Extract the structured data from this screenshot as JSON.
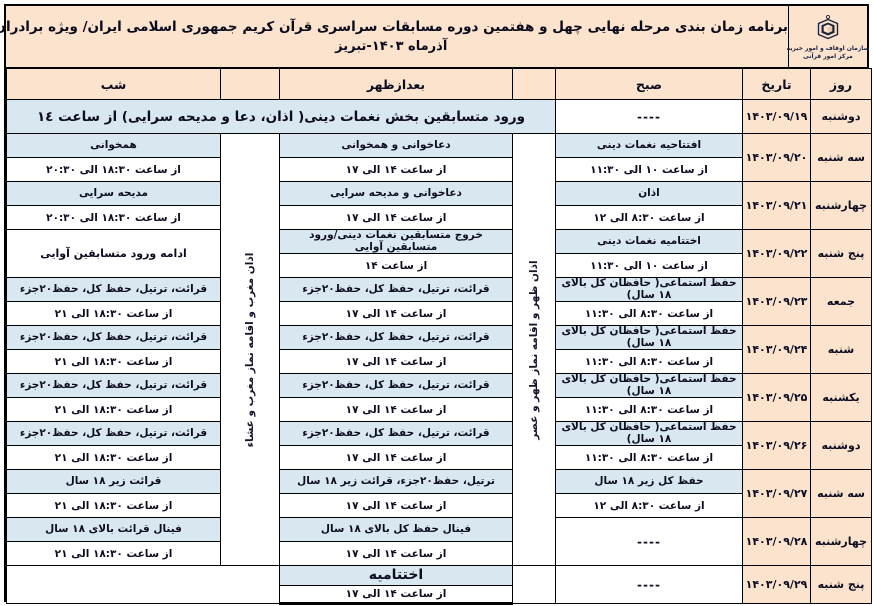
{
  "header": {
    "title_line1": "برنامه زمان بندی مرحله نهایی چهل و هفتمین دوره مسابقات سراسری قرآن کریم جمهوری اسلامی ایران/ ویژه برادران",
    "title_line2": "آذرماه ۱۴۰۳-تبریز",
    "left_logo": "quran-calligraphy-roundel",
    "right_logo": {
      "emblem": "awqaf-organization-emblem",
      "caption_line1": "سازمان اوقاف و امور خیریه",
      "caption_line2": "مرکز امور قرآنی"
    }
  },
  "table": {
    "columns": {
      "day": "روز",
      "date": "تاریخ",
      "morning": "صبح",
      "afternoon": "بعدازظهر",
      "night": "شب"
    },
    "vertical_labels": {
      "noon": "اذان ظهر و اقامه نماز ظهر و عصر",
      "evening": "اذان مغرب و اقامه نماز مغرب و عشاء"
    },
    "rows": [
      {
        "day": "دوشنبه",
        "date": "۱۴۰۳/۰۹/۱۹",
        "morning": {
          "dash": "----"
        },
        "wide": "ورود متسابقین بخش نغمات دینی( اذان، دعا و مدیحه سرایی) از ساعت ١٤"
      },
      {
        "day": "سه شنبه",
        "date": "۱۴۰۳/۰۹/۲۰",
        "morning": {
          "label": "افتتاحیه نغمات دینی",
          "time": "از ساعت ۱۰ الی ۱۱:۳۰"
        },
        "afternoon": {
          "label": "دعاخوانی و همخوانی",
          "time": "از ساعت ۱۴ الی ۱۷"
        },
        "night": {
          "label": "همخوانی",
          "time": "از ساعت ۱۸:۳۰ الی ۲۰:۳۰"
        }
      },
      {
        "day": "چهارشنبه",
        "date": "۱۴۰۳/۰۹/۲۱",
        "morning": {
          "label": "اذان",
          "time": "از ساعت ۸:۳۰ الی ۱۲"
        },
        "afternoon": {
          "label": "دعاخوانی و مدیحه سرایی",
          "time": "از ساعت ۱۴ الی ۱۷"
        },
        "night": {
          "label": "مدیحه سرایی",
          "time": "از ساعت ۱۸:۳۰ الی ۲۰:۳۰"
        }
      },
      {
        "day": "پنج شنبه",
        "date": "۱۴۰۳/۰۹/۲۲",
        "morning": {
          "label": "اختتامیه نغمات دینی",
          "time": "از ساعت ۱۰ الی ۱۱:۳۰"
        },
        "afternoon": {
          "label": "خروج متسابقین نغمات دینی/ورود متسابقین آوایی",
          "time": "از ساعت ۱۴"
        },
        "night": {
          "merged": "ادامه ورود متسابقین آوایی"
        }
      },
      {
        "day": "جمعه",
        "date": "۱۴۰۳/۰۹/۲۳",
        "morning": {
          "label": "حفظ استماعی( حافظان کل بالای ۱۸ سال)",
          "time": "از ساعت ۸:۳۰ الی ۱۱:۳۰"
        },
        "afternoon": {
          "label": "قرائت، ترتیل، حفظ کل، حفظ۲۰جزء",
          "time": "از ساعت ۱۴ الی ۱۷"
        },
        "night": {
          "label": "قرائت، ترتیل، حفظ کل، حفظ۲۰جزء",
          "time": "از ساعت ۱۸:۳۰ الی ۲۱"
        }
      },
      {
        "day": "شنبه",
        "date": "۱۴۰۳/۰۹/۲۴",
        "morning": {
          "label": "حفظ استماعی( حافظان کل بالای ۱۸ سال)",
          "time": "از ساعت ۸:۳۰ الی ۱۱:۳۰"
        },
        "afternoon": {
          "label": "قرائت، ترتیل، حفظ کل، حفظ۲۰جزء",
          "time": "از ساعت ۱۴ الی ۱۷"
        },
        "night": {
          "label": "قرائت، ترتیل، حفظ کل، حفظ۲۰جزء",
          "time": "از ساعت ۱۸:۳۰ الی ۲۱"
        }
      },
      {
        "day": "یکشنبه",
        "date": "۱۴۰۳/۰۹/۲۵",
        "morning": {
          "label": "حفظ استماعی( حافظان کل بالای ۱۸ سال)",
          "time": "از ساعت ۸:۳۰ الی ۱۱:۳۰"
        },
        "afternoon": {
          "label": "قرائت، ترتیل، حفظ کل، حفظ۲۰جزء",
          "time": "از ساعت ۱۴ الی ۱۷"
        },
        "night": {
          "label": "قرائت، ترتیل، حفظ کل، حفظ۲۰جزء",
          "time": "از ساعت ۱۸:۳۰ الی ۲۱"
        }
      },
      {
        "day": "دوشنبه",
        "date": "۱۴۰۳/۰۹/۲۶",
        "morning": {
          "label": "حفظ استماعی( حافظان کل بالای ۱۸ سال)",
          "time": "از ساعت ۸:۳۰ الی ۱۱:۳۰"
        },
        "afternoon": {
          "label": "قرائت، ترتیل، حفظ کل، حفظ۲۰جزء",
          "time": "از ساعت ۱۴ الی ۱۷"
        },
        "night": {
          "label": "قرائت، ترتیل، حفظ کل، حفظ۲۰جزء",
          "time": "از ساعت ۱۸:۳۰ الی ۲۱"
        }
      },
      {
        "day": "سه شنبه",
        "date": "۱۴۰۳/۰۹/۲۷",
        "morning": {
          "label": "حفظ کل زیر ۱۸ سال",
          "time": "از ساعت ۸:۳۰ الی ۱۲"
        },
        "afternoon": {
          "label": "ترتیل، حفظ۲۰جزء، قرائت زیر ۱۸ سال",
          "time": "از ساعت ۱۴ الی ۱۷"
        },
        "night": {
          "label": "قرائت زیر ۱۸ سال",
          "time": "از ساعت ۱۸:۳۰ الی ۲۱"
        }
      },
      {
        "day": "چهارشنبه",
        "date": "۱۴۰۳/۰۹/۲۸",
        "morning": {
          "dash": "----"
        },
        "afternoon": {
          "label": "فینال حفظ کل بالای ۱۸ سال",
          "time": "از ساعت ۱۴ الی ۱۷"
        },
        "night": {
          "label": "فینال قرائت بالای ۱۸ سال",
          "time": "از ساعت ۱۸:۳۰ الی ۲۱"
        }
      },
      {
        "day": "پنج شنبه",
        "date": "۱۴۰۳/۰۹/۲۹",
        "morning": {
          "dash": "----"
        },
        "afternoon": {
          "label": "اختتامیه",
          "time": "از ساعت ۱۴ الی ۱۷"
        },
        "night": {
          "empty": true
        }
      }
    ]
  },
  "colors": {
    "band_bg": "#fbe3cd",
    "label_bg": "#d9e7f0",
    "border": "#000000",
    "text": "#0d0d21"
  }
}
